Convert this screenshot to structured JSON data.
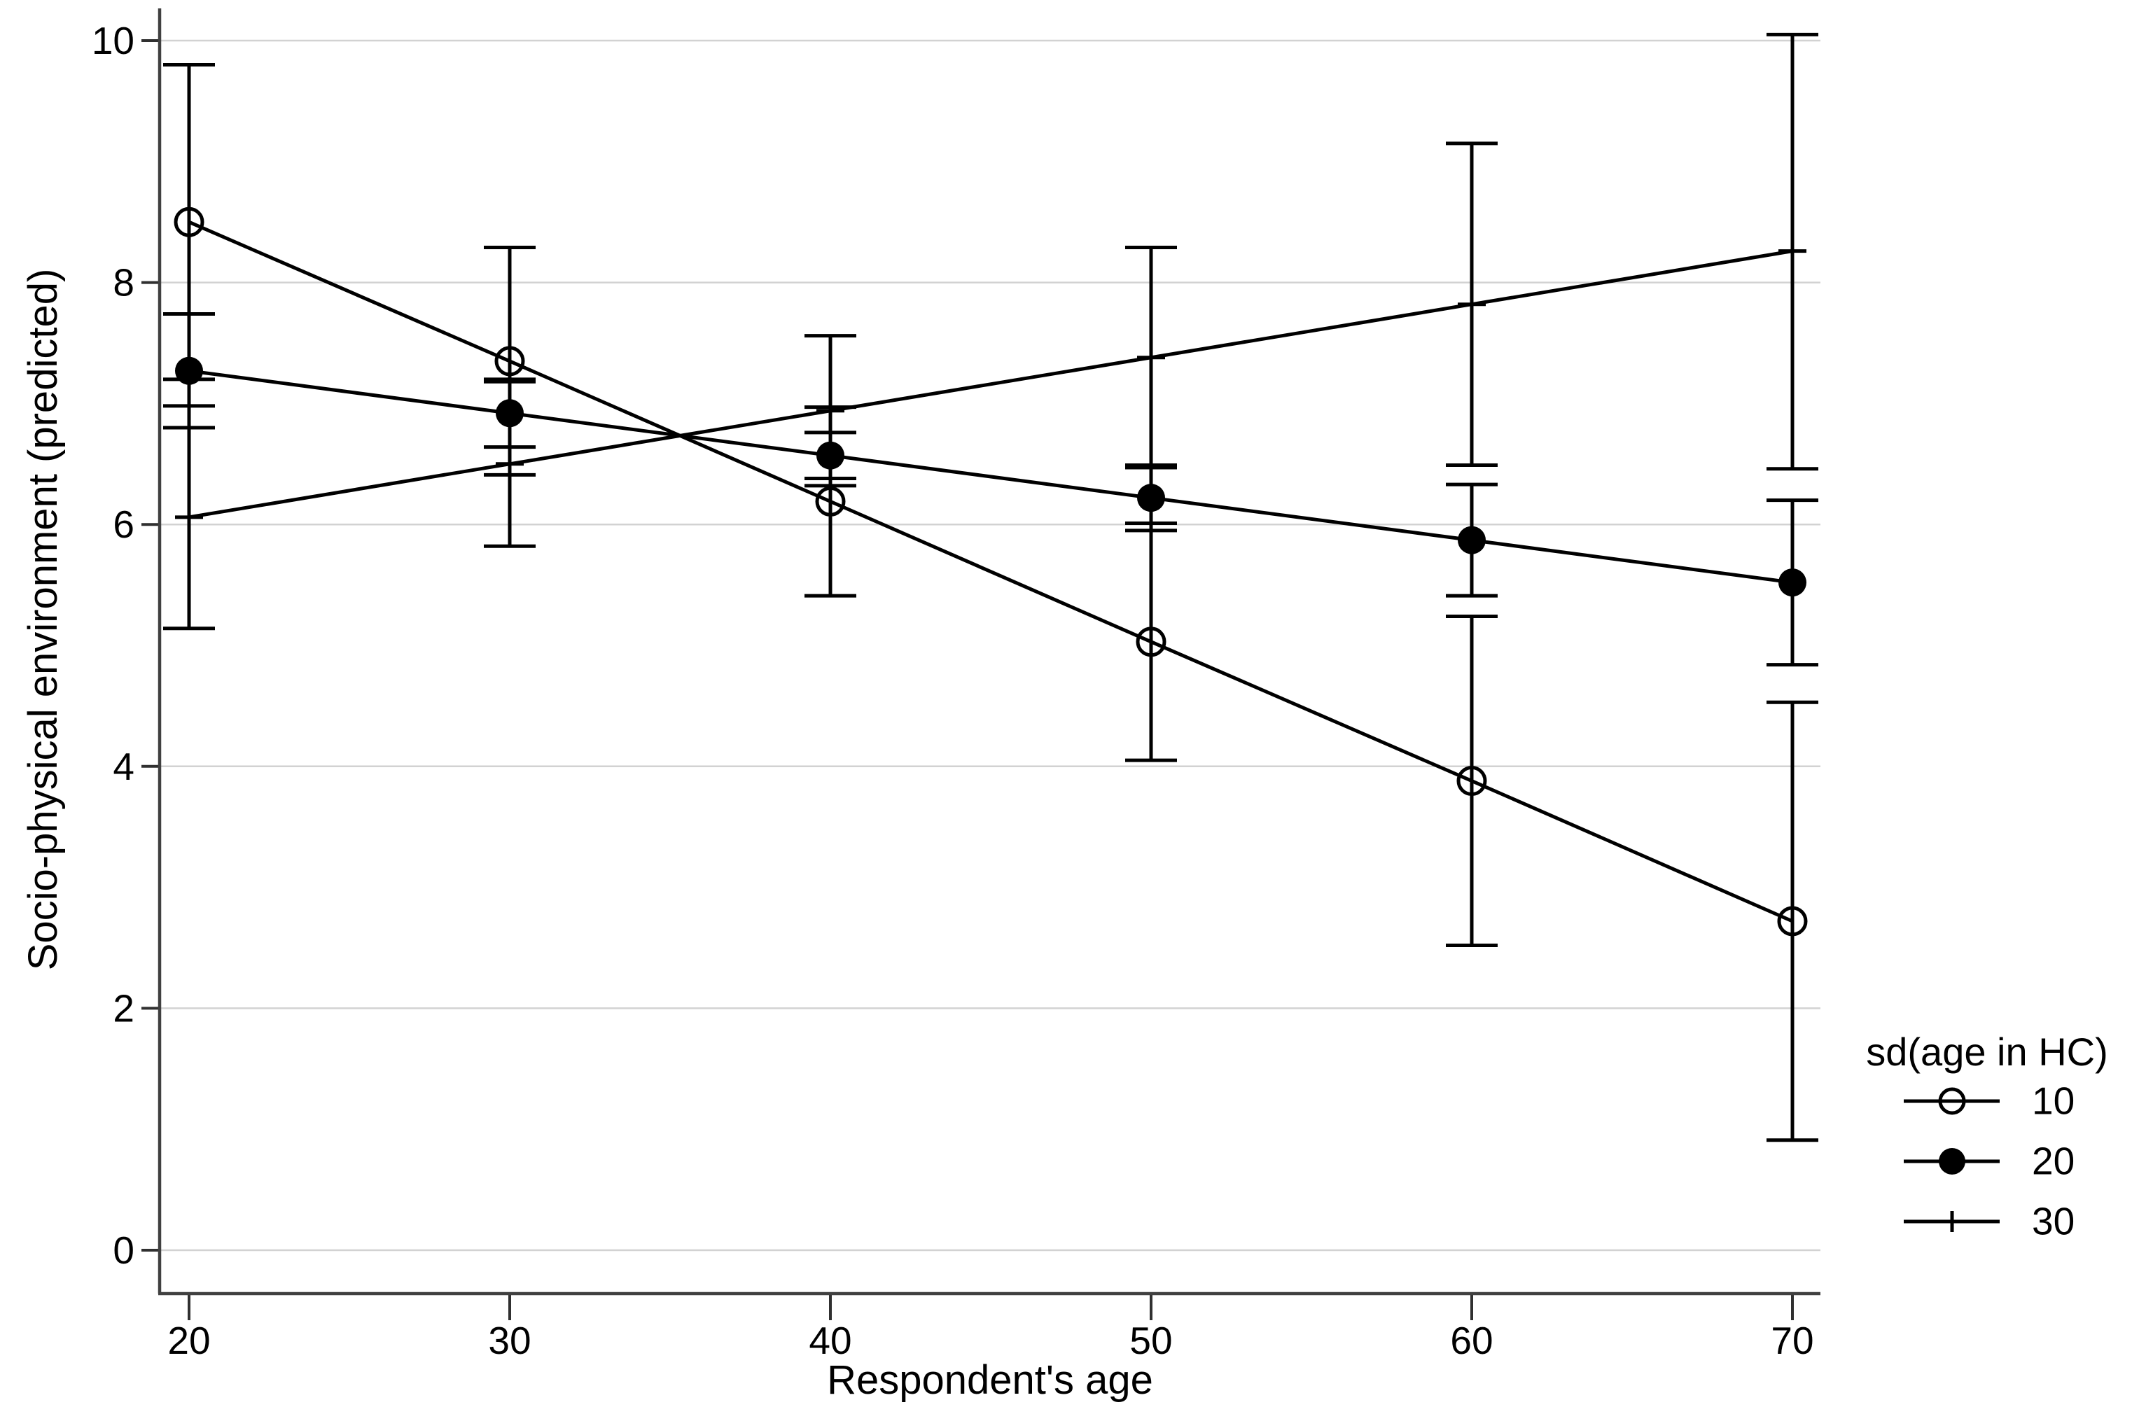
{
  "page": {
    "background": "#ffffff"
  },
  "chart_data": {
    "type": "line",
    "title": "",
    "xlabel": "Respondent's age",
    "ylabel": "Socio-physical environment (predicted)",
    "x_ticks": [
      20,
      30,
      40,
      50,
      60,
      70
    ],
    "y_ticks": [
      0,
      2,
      4,
      6,
      8,
      10
    ],
    "xlim": [
      19.1,
      70.9
    ],
    "ylim": [
      -0.36,
      10.28
    ],
    "grid": "horizontal-only",
    "x": [
      20,
      30,
      40,
      50,
      60,
      70
    ],
    "series": [
      {
        "name": "10",
        "marker": "open-circle",
        "values": [
          8.5,
          7.35,
          6.19,
          5.03,
          3.88,
          2.72
        ],
        "ci_low": [
          7.2,
          6.41,
          5.41,
          4.05,
          2.52,
          0.91
        ],
        "ci_high": [
          9.8,
          8.29,
          6.97,
          6.01,
          5.24,
          4.53
        ]
      },
      {
        "name": "20",
        "marker": "filled-circle",
        "values": [
          7.27,
          6.92,
          6.57,
          6.22,
          5.87,
          5.52
        ],
        "ci_low": [
          6.8,
          6.64,
          6.38,
          5.95,
          5.41,
          4.84
        ],
        "ci_high": [
          7.74,
          7.2,
          6.76,
          6.49,
          6.33,
          6.2
        ]
      },
      {
        "name": "30",
        "marker": "plus",
        "values": [
          6.06,
          6.5,
          6.94,
          7.38,
          7.82,
          8.26
        ],
        "ci_low": [
          5.14,
          5.82,
          6.32,
          6.47,
          6.49,
          6.46
        ],
        "ci_high": [
          6.98,
          7.18,
          7.56,
          8.29,
          9.15,
          10.05
        ]
      }
    ],
    "legend": {
      "title": "sd(age in HC)",
      "position": "outside-bottom-right",
      "items": [
        {
          "label": "10",
          "marker": "open-circle"
        },
        {
          "label": "20",
          "marker": "filled-circle"
        },
        {
          "label": "30",
          "marker": "plus"
        }
      ]
    },
    "colors": {
      "data": "#000000",
      "axis": "#404040",
      "tick": "#303030",
      "gridline": "#d2d2d2",
      "text": "#000000",
      "background": "#ffffff"
    }
  }
}
